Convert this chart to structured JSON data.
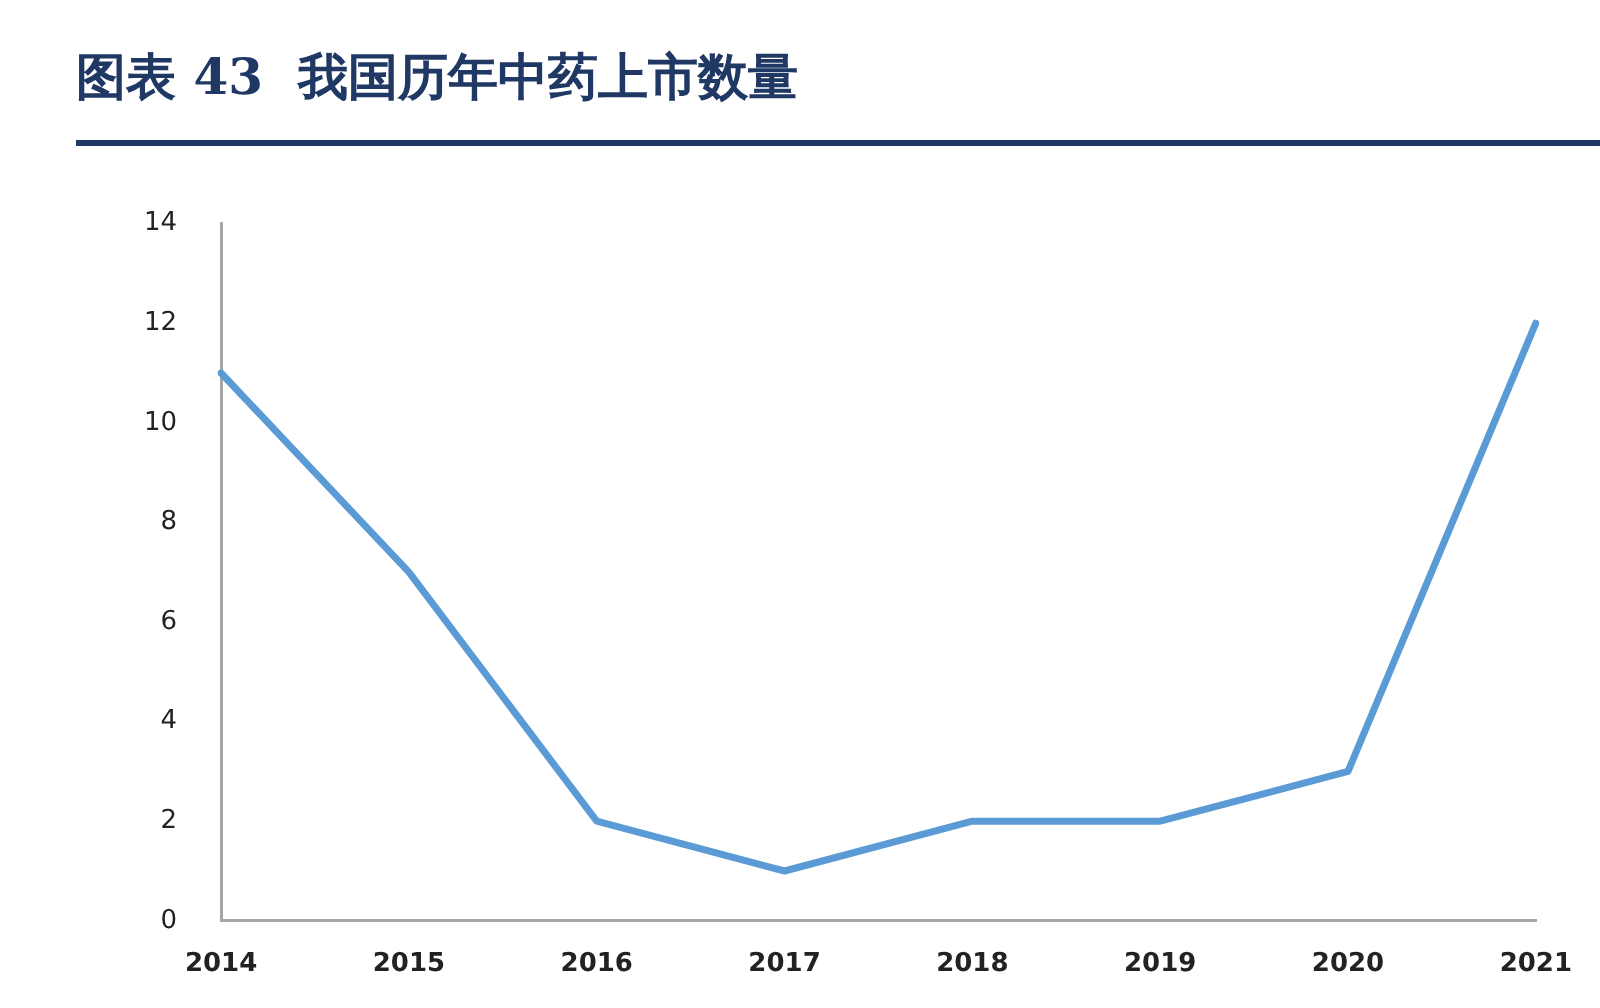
{
  "chart_data": {
    "type": "line",
    "title": "图表 43  我国历年中药上市数量",
    "categories": [
      "2014",
      "2015",
      "2016",
      "2017",
      "2018",
      "2019",
      "2020",
      "2021"
    ],
    "series": [
      {
        "color": "#5b9bd5",
        "values": [
          11,
          7,
          2,
          1,
          2,
          2,
          3,
          12
        ]
      }
    ],
    "ylim": [
      0,
      14
    ],
    "yticks": [
      0,
      2,
      4,
      6,
      8,
      10,
      12,
      14
    ],
    "grid": false,
    "legend": false,
    "marker": "none",
    "line_style": "solid"
  }
}
